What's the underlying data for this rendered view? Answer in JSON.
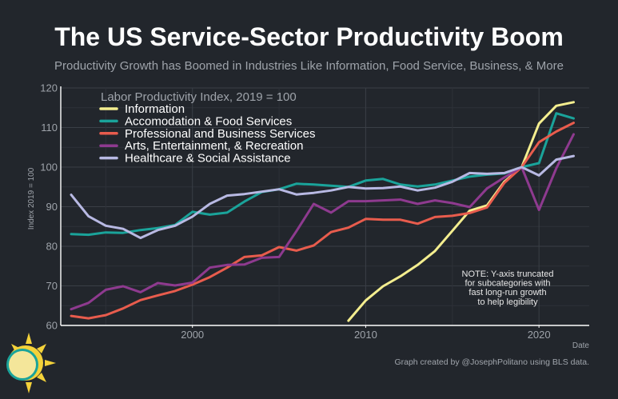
{
  "header": {
    "title": "The US Service-Sector Productivity Boom",
    "subtitle": "Productivity Growth has Boomed in Industries Like Information, Food Service, Business, & More"
  },
  "footer": {
    "credit": "Graph created by @JosephPolitano using BLS data."
  },
  "chart_data": {
    "type": "line",
    "title": "The US Service-Sector Productivity Boom",
    "legend_title": "Labor Productivity Index, 2019 = 100",
    "legend_position": "top-left",
    "xlabel": "Date",
    "ylabel": "Index 2019 = 100",
    "xlim": [
      1992.4,
      2022.9
    ],
    "ylim": [
      60,
      120
    ],
    "x_ticks": [
      2000,
      2010,
      2020
    ],
    "y_ticks": [
      60,
      70,
      80,
      90,
      100,
      110,
      120
    ],
    "grid": true,
    "note": [
      "NOTE: Y-axis truncated",
      "for subcategories with",
      "fast long-run growth",
      "to help legibility"
    ],
    "series": [
      {
        "name": "Information",
        "color": "#f4ee8f",
        "x": [
          2009,
          2010,
          2011,
          2012,
          2013,
          2014,
          2015,
          2016,
          2017,
          2018,
          2019,
          2020,
          2021,
          2022
        ],
        "values": [
          61.2,
          66.3,
          69.9,
          72.4,
          75.3,
          78.8,
          83.9,
          89.0,
          90.3,
          96.3,
          100.0,
          111.0,
          115.5,
          116.4
        ]
      },
      {
        "name": "Accomodation & Food Services",
        "color": "#1aa39a",
        "x": [
          1993,
          1994,
          1995,
          1996,
          1997,
          1998,
          1999,
          2000,
          2001,
          2002,
          2003,
          2004,
          2005,
          2006,
          2007,
          2008,
          2009,
          2010,
          2011,
          2012,
          2013,
          2014,
          2015,
          2016,
          2017,
          2018,
          2019,
          2020,
          2021,
          2022
        ],
        "values": [
          83.1,
          82.9,
          83.5,
          83.4,
          84.1,
          84.6,
          85.4,
          88.7,
          88.0,
          88.5,
          91.3,
          93.7,
          94.4,
          95.8,
          95.6,
          95.3,
          95.0,
          96.6,
          97.0,
          95.6,
          95.1,
          95.6,
          96.6,
          97.6,
          98.1,
          98.4,
          100.0,
          101.0,
          113.6,
          112.3
        ]
      },
      {
        "name": "Professional and Business Services",
        "color": "#e85c4d",
        "x": [
          1993,
          1994,
          1995,
          1996,
          1997,
          1998,
          1999,
          2000,
          2001,
          2002,
          2003,
          2004,
          2005,
          2006,
          2007,
          2008,
          2009,
          2010,
          2011,
          2012,
          2013,
          2014,
          2015,
          2016,
          2017,
          2018,
          2019,
          2020,
          2021,
          2022
        ],
        "values": [
          62.4,
          61.8,
          62.6,
          64.3,
          66.4,
          67.6,
          68.7,
          70.3,
          72.2,
          74.6,
          77.3,
          77.7,
          79.8,
          78.9,
          80.2,
          83.6,
          84.7,
          86.9,
          86.7,
          86.7,
          85.7,
          87.4,
          87.7,
          88.4,
          89.8,
          96.0,
          100.0,
          106.3,
          109.0,
          111.2
        ]
      },
      {
        "name": "Arts, Entertainment, & Recreation",
        "color": "#8e3a8f",
        "x": [
          1993,
          1994,
          1995,
          1996,
          1997,
          1998,
          1999,
          2000,
          2001,
          2002,
          2003,
          2004,
          2005,
          2006,
          2007,
          2008,
          2009,
          2010,
          2011,
          2012,
          2013,
          2014,
          2015,
          2016,
          2017,
          2018,
          2019,
          2020,
          2021,
          2022
        ],
        "values": [
          64.1,
          65.7,
          69.0,
          69.9,
          68.4,
          70.7,
          70.1,
          70.8,
          74.6,
          75.3,
          75.4,
          77.1,
          77.3,
          83.8,
          90.7,
          88.5,
          91.4,
          91.4,
          91.6,
          91.8,
          90.7,
          91.6,
          90.9,
          89.9,
          94.6,
          97.4,
          100.0,
          89.2,
          99.7,
          108.3
        ]
      },
      {
        "name": "Healthcare & Social Assistance",
        "color": "#b8b9e3",
        "x": [
          1993,
          1994,
          1995,
          1996,
          1997,
          1998,
          1999,
          2000,
          2001,
          2002,
          2003,
          2004,
          2005,
          2006,
          2007,
          2008,
          2009,
          2010,
          2011,
          2012,
          2013,
          2014,
          2015,
          2016,
          2017,
          2018,
          2019,
          2020,
          2021,
          2022
        ],
        "values": [
          93.0,
          87.6,
          85.2,
          84.4,
          82.1,
          84.1,
          85.2,
          87.5,
          90.7,
          92.8,
          93.2,
          93.8,
          94.4,
          93.1,
          93.5,
          94.1,
          95.0,
          94.6,
          94.7,
          95.1,
          94.1,
          94.8,
          96.3,
          98.5,
          98.3,
          98.5,
          100.0,
          97.9,
          101.9,
          102.8
        ]
      }
    ]
  }
}
